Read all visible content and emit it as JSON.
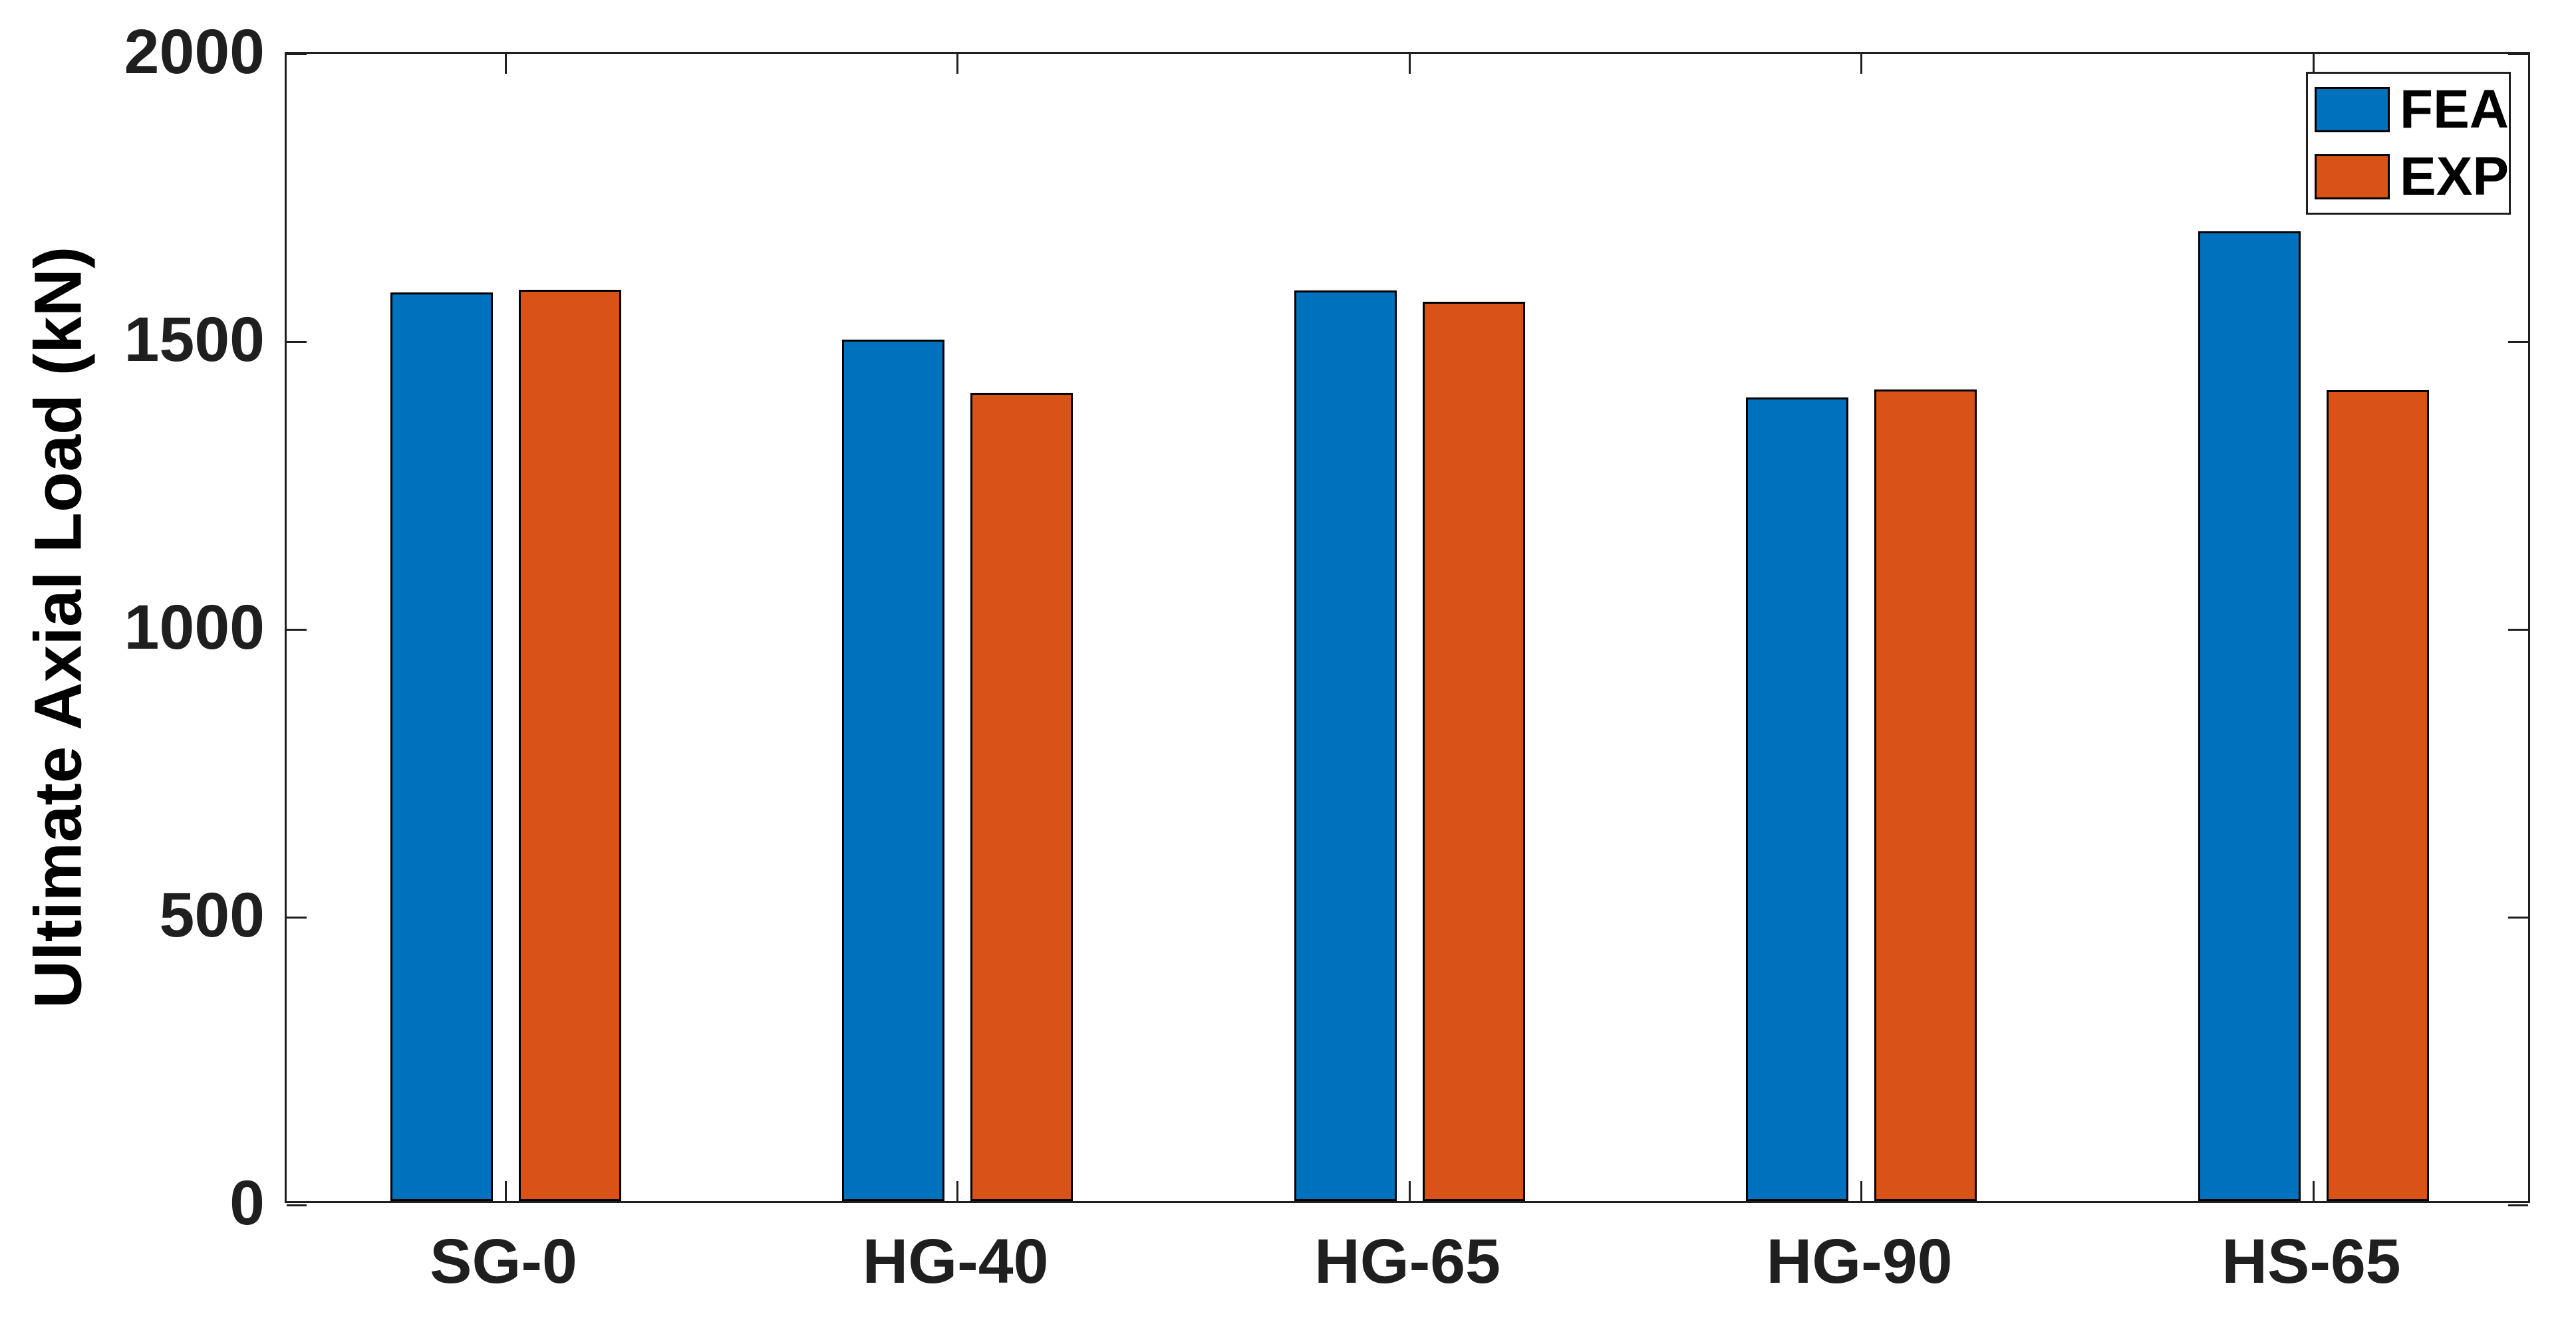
{
  "chart_data": {
    "type": "bar",
    "title": "",
    "xlabel": "",
    "ylabel": "Ultimate Axial Load (kN)",
    "categories": [
      "SG-0",
      "HG-40",
      "HG-65",
      "HG-90",
      "HS-65"
    ],
    "series": [
      {
        "name": "FEA",
        "color": "#0072BD",
        "values": [
          1578,
          1496,
          1582,
          1396,
          1685
        ]
      },
      {
        "name": "EXP",
        "color": "#D95319",
        "values": [
          1583,
          1404,
          1562,
          1410,
          1409
        ]
      }
    ],
    "ylim": [
      0,
      2000
    ],
    "yticks": [
      0,
      500,
      1000,
      1500,
      2000
    ],
    "grid": false,
    "legend_position": "top-right",
    "bar_edge_color": "#000000",
    "axis_color": "#1f1f1f",
    "background_color": "#FFFFFF"
  }
}
